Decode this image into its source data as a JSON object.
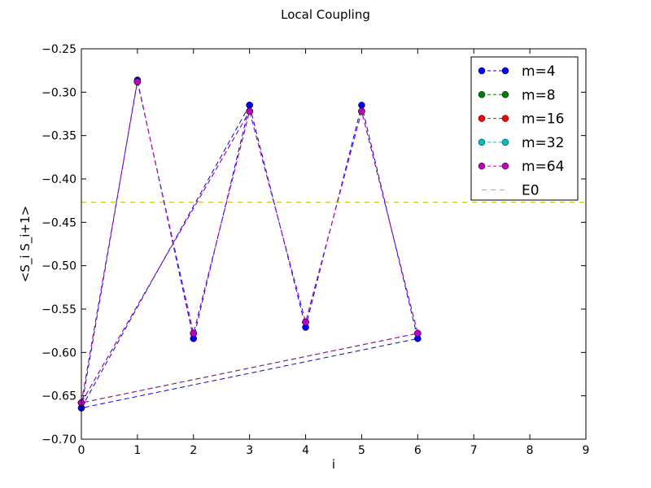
{
  "chart_data": {
    "type": "line",
    "title": "Local Coupling",
    "xlabel": "i",
    "ylabel": "<S_i S_i+1>",
    "xlim": [
      0,
      9
    ],
    "ylim": [
      -0.7,
      -0.25
    ],
    "x_ticks": [
      0,
      1,
      2,
      3,
      4,
      5,
      6,
      7,
      8,
      9
    ],
    "x_tick_labels": [
      "0",
      "1",
      "2",
      "3",
      "4",
      "5",
      "6",
      "7",
      "8",
      "9"
    ],
    "y_ticks": [
      -0.7,
      -0.65,
      -0.6,
      -0.55,
      -0.5,
      -0.45,
      -0.4,
      -0.35,
      -0.3,
      -0.25
    ],
    "y_tick_labels": [
      "−0.70",
      "−0.65",
      "−0.60",
      "−0.55",
      "−0.50",
      "−0.45",
      "−0.40",
      "−0.35",
      "−0.30",
      "−0.25"
    ],
    "grid": false,
    "legend_position": "top-right",
    "reference_line": {
      "name": "E0",
      "y": -0.4268,
      "color": "#bfbf00",
      "style": "dashed"
    },
    "series": [
      {
        "name": "m=4",
        "color": "#0000ff",
        "x": [
          0,
          1,
          2,
          3,
          4,
          5,
          6,
          0,
          3
        ],
        "y": [
          -0.664,
          -0.286,
          -0.584,
          -0.315,
          -0.571,
          -0.315,
          -0.584,
          -0.664,
          -0.315
        ]
      },
      {
        "name": "m=8",
        "color": "#008000",
        "x": [
          0,
          1,
          2,
          3,
          4,
          5,
          6,
          0,
          3
        ],
        "y": [
          -0.658,
          -0.288,
          -0.578,
          -0.322,
          -0.565,
          -0.322,
          -0.578,
          -0.658,
          -0.322
        ]
      },
      {
        "name": "m=16",
        "color": "#ff0000",
        "x": [
          0,
          1,
          2,
          3,
          4,
          5,
          6,
          0,
          3
        ],
        "y": [
          -0.658,
          -0.288,
          -0.578,
          -0.322,
          -0.565,
          -0.322,
          -0.578,
          -0.658,
          -0.322
        ]
      },
      {
        "name": "m=32",
        "color": "#00bfbf",
        "x": [
          0,
          1,
          2,
          3,
          4,
          5,
          6,
          0,
          3
        ],
        "y": [
          -0.658,
          -0.288,
          -0.578,
          -0.322,
          -0.565,
          -0.322,
          -0.578,
          -0.658,
          -0.322
        ]
      },
      {
        "name": "m=64",
        "color": "#bf00bf",
        "x": [
          0,
          1,
          2,
          3,
          4,
          5,
          6,
          0,
          3
        ],
        "y": [
          -0.658,
          -0.288,
          -0.578,
          -0.322,
          -0.565,
          -0.322,
          -0.578,
          -0.658,
          -0.322
        ]
      }
    ]
  }
}
